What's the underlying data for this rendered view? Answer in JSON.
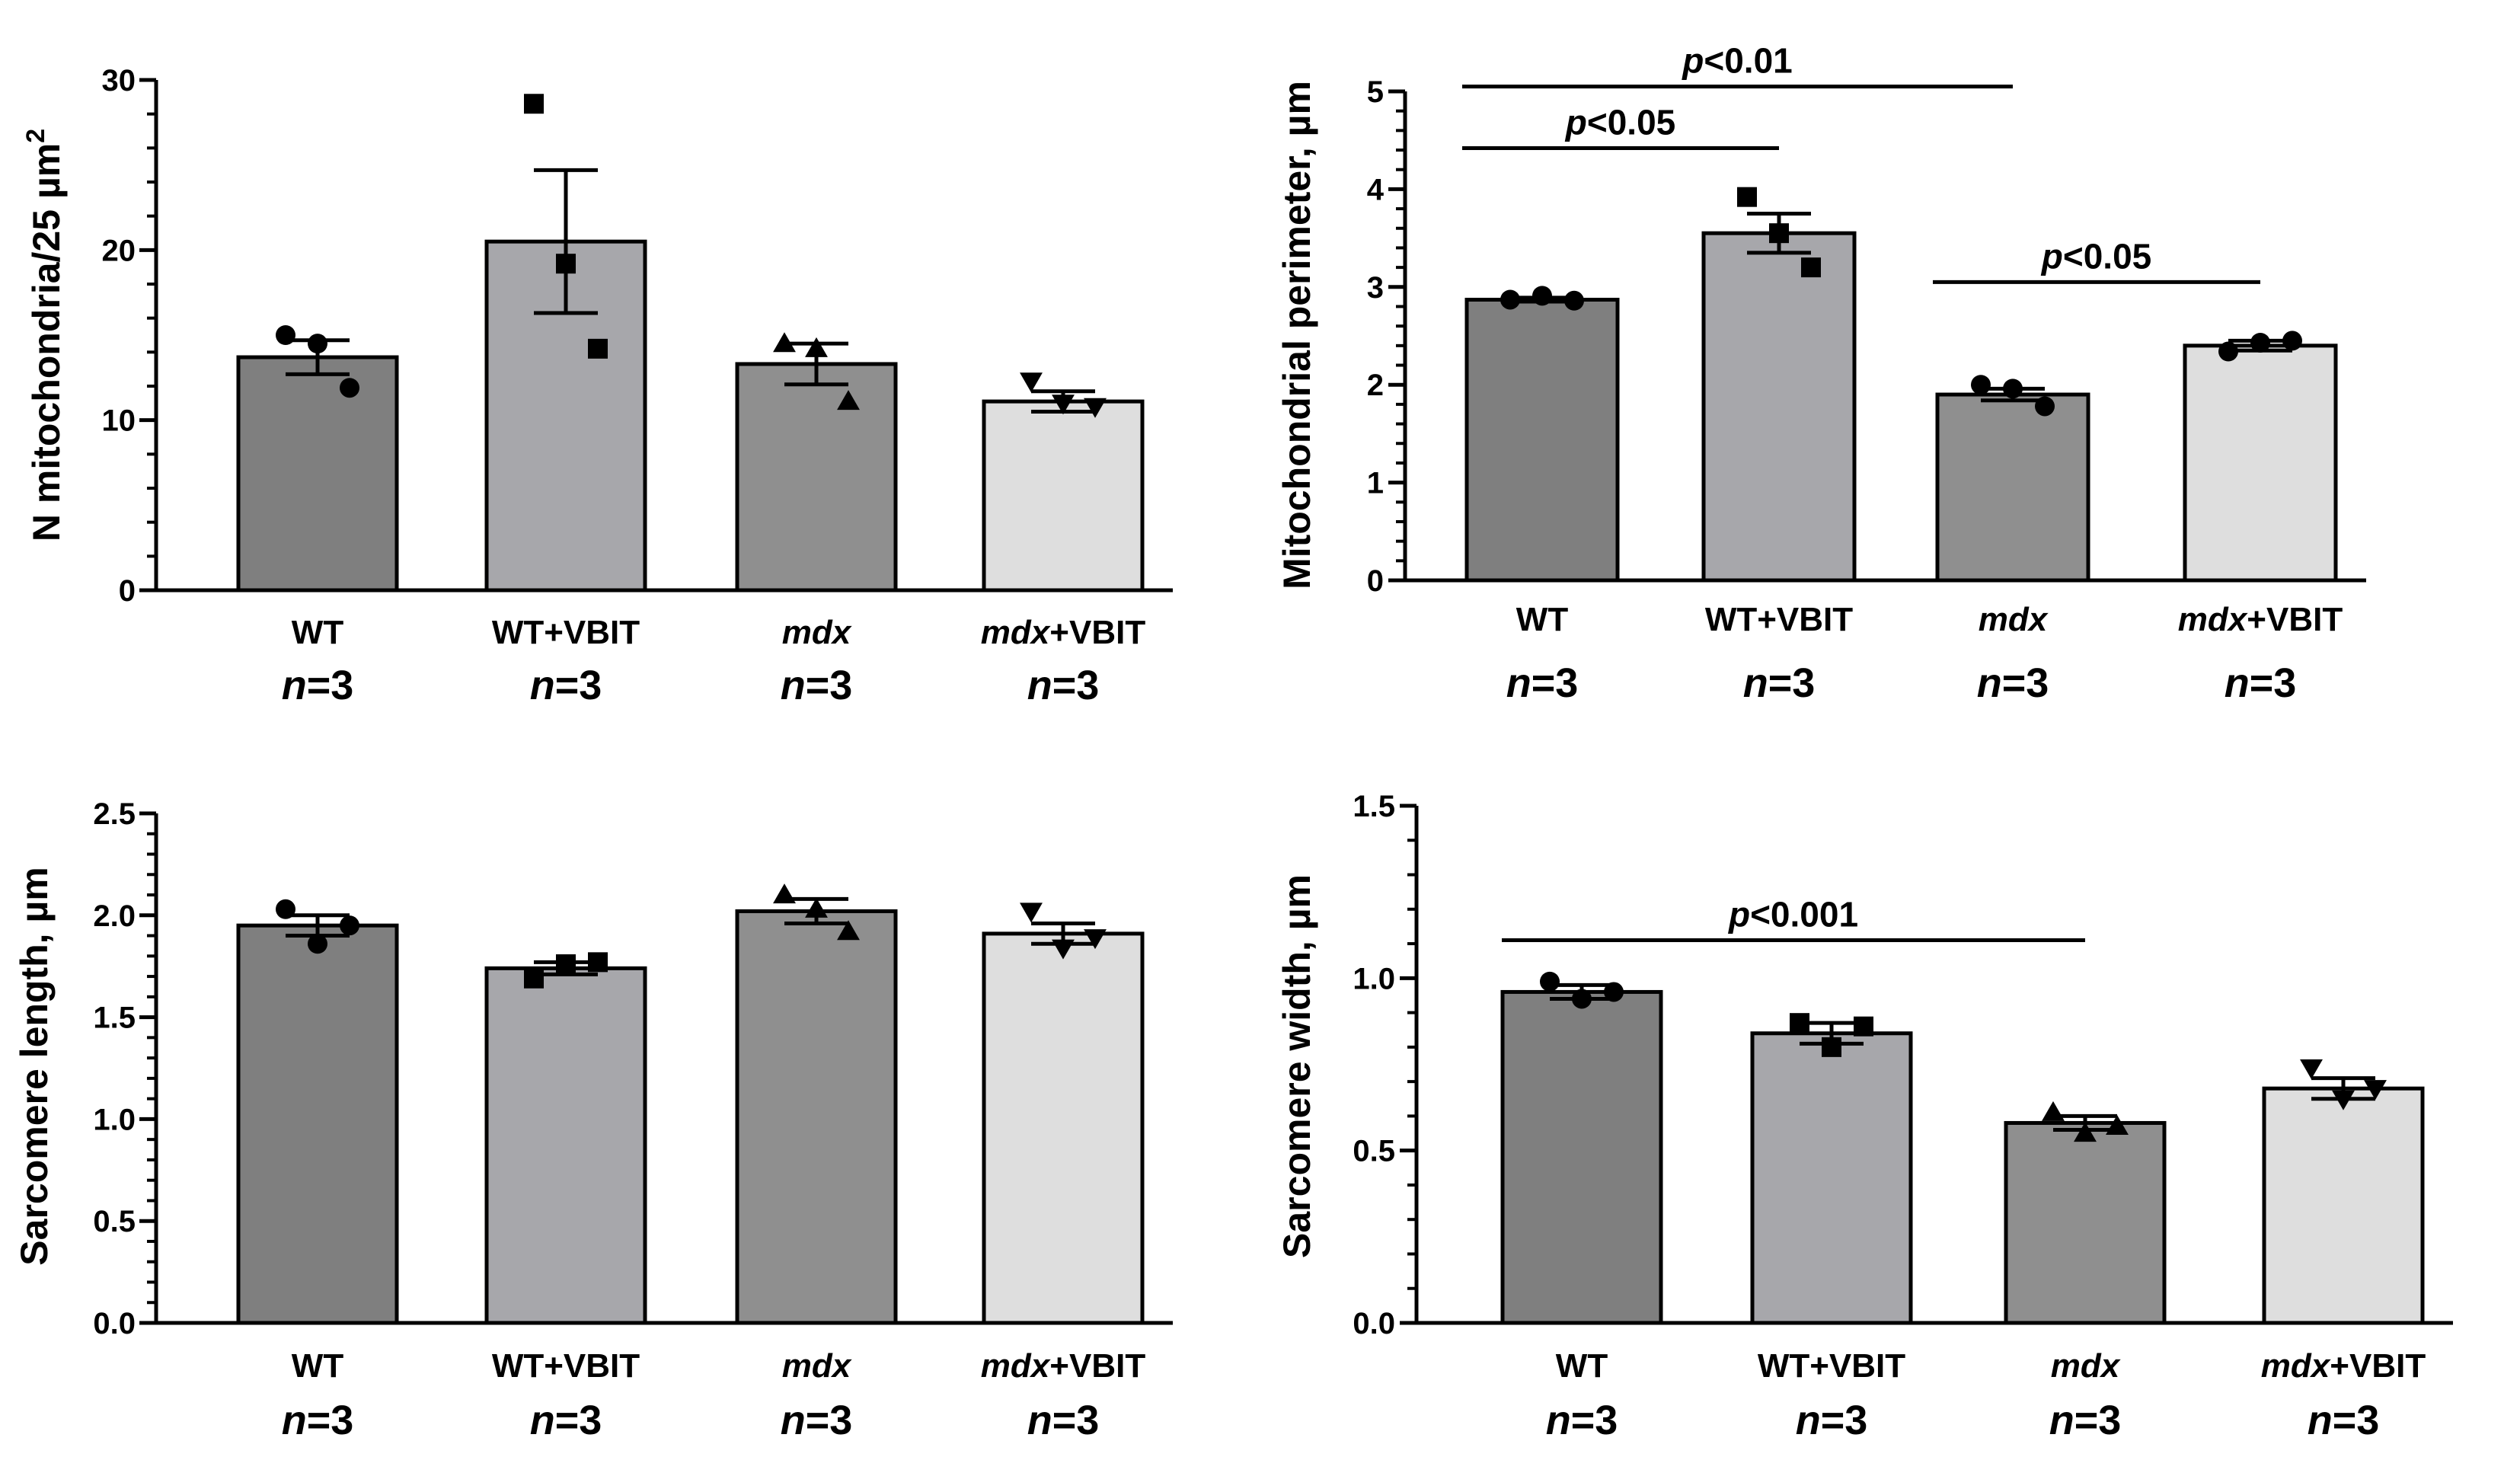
{
  "chart_data": [
    {
      "type": "bar",
      "panel": "top-left",
      "ylabel": "N mitochondria/25 µm",
      "ylabel_superscript": "2",
      "ylim": [
        0,
        30
      ],
      "yticks": [
        "0",
        "10",
        "20",
        "30"
      ],
      "ytick_values": [
        0,
        10,
        20,
        30
      ],
      "categories": [
        {
          "label": "WT",
          "italic": "",
          "suffix": "WT",
          "n_prefix": "n",
          "n_rest": "=3"
        },
        {
          "label": "WT+VBIT",
          "italic": "",
          "suffix": "WT+VBIT",
          "n_prefix": "n",
          "n_rest": "=3"
        },
        {
          "label": "mdx",
          "italic": "mdx",
          "suffix": "",
          "n_prefix": "n",
          "n_rest": "=3"
        },
        {
          "label": "mdx+VBIT",
          "italic": "mdx",
          "suffix": "+VBIT",
          "n_prefix": "n",
          "n_rest": "=3"
        }
      ],
      "values": [
        13.7,
        20.5,
        13.3,
        11.1
      ],
      "sem": [
        1.0,
        4.2,
        1.2,
        0.6
      ],
      "points": [
        [
          15.0,
          14.5,
          11.9
        ],
        [
          28.6,
          19.2,
          14.2
        ],
        [
          14.5,
          14.2,
          11.1
        ],
        [
          12.3,
          11.0,
          10.8
        ]
      ],
      "markers": [
        "circle",
        "square",
        "triangle-up",
        "triangle-down"
      ],
      "colors": [
        "#7f7f7f",
        "#a7a7ab",
        "#8f8f8f",
        "#dedede"
      ],
      "significance": []
    },
    {
      "type": "bar",
      "panel": "top-right",
      "ylabel": "Mitochondrial perimeter, µm",
      "ylabel_superscript": "",
      "ylim": [
        0,
        5
      ],
      "yticks": [
        "0",
        "1",
        "2",
        "3",
        "4",
        "5"
      ],
      "ytick_values": [
        0,
        1,
        2,
        3,
        4,
        5
      ],
      "categories": [
        {
          "label": "WT",
          "italic": "",
          "suffix": "WT",
          "n_prefix": "n",
          "n_rest": "=3"
        },
        {
          "label": "WT+VBIT",
          "italic": "",
          "suffix": "WT+VBIT",
          "n_prefix": "n",
          "n_rest": "=3"
        },
        {
          "label": "mdx",
          "italic": "mdx",
          "suffix": "",
          "n_prefix": "n",
          "n_rest": "=3"
        },
        {
          "label": "mdx+VBIT",
          "italic": "mdx",
          "suffix": "+VBIT",
          "n_prefix": "n",
          "n_rest": "=3"
        }
      ],
      "values": [
        2.87,
        3.55,
        1.9,
        2.4
      ],
      "sem": [
        0.02,
        0.2,
        0.06,
        0.05
      ],
      "points": [
        [
          2.87,
          2.91,
          2.86
        ],
        [
          3.92,
          3.55,
          3.2
        ],
        [
          2.0,
          1.96,
          1.78
        ],
        [
          2.34,
          2.43,
          2.45
        ]
      ],
      "markers": [
        "circle",
        "square",
        "circle",
        "circle"
      ],
      "colors": [
        "#7f7f7f",
        "#a7a7ab",
        "#8f8f8f",
        "#dedede"
      ],
      "significance": [
        {
          "from": 0,
          "to": 2,
          "y": 5.05,
          "p": "p",
          "rest": "<0.01"
        },
        {
          "from": 0,
          "to": 1,
          "y": 4.42,
          "p": "p",
          "rest": "<0.05"
        },
        {
          "from": 2,
          "to": 3,
          "y": 3.05,
          "p": "p",
          "rest": "<0.05"
        }
      ]
    },
    {
      "type": "bar",
      "panel": "bottom-left",
      "ylabel": "Sarcomere length, µm",
      "ylabel_superscript": "",
      "ylim": [
        0,
        2.5
      ],
      "yticks": [
        "0.0",
        "0.5",
        "1.0",
        "1.5",
        "2.0",
        "2.5"
      ],
      "ytick_values": [
        0,
        0.5,
        1.0,
        1.5,
        2.0,
        2.5
      ],
      "categories": [
        {
          "label": "WT",
          "italic": "",
          "suffix": "WT",
          "n_prefix": "n",
          "n_rest": "=3"
        },
        {
          "label": "WT+VBIT",
          "italic": "",
          "suffix": "WT+VBIT",
          "n_prefix": "n",
          "n_rest": "=3"
        },
        {
          "label": "mdx",
          "italic": "mdx",
          "suffix": "",
          "n_prefix": "n",
          "n_rest": "=3"
        },
        {
          "label": "mdx+VBIT",
          "italic": "mdx",
          "suffix": "+VBIT",
          "n_prefix": "n",
          "n_rest": "=3"
        }
      ],
      "values": [
        1.95,
        1.74,
        2.02,
        1.91
      ],
      "sem": [
        0.05,
        0.03,
        0.06,
        0.05
      ],
      "points": [
        [
          2.03,
          1.86,
          1.95
        ],
        [
          1.69,
          1.76,
          1.77
        ],
        [
          2.1,
          2.03,
          1.92
        ],
        [
          2.02,
          1.84,
          1.89
        ]
      ],
      "markers": [
        "circle",
        "square",
        "triangle-up",
        "triangle-down"
      ],
      "colors": [
        "#7f7f7f",
        "#a7a7ab",
        "#8f8f8f",
        "#dedede"
      ],
      "significance": []
    },
    {
      "type": "bar",
      "panel": "bottom-right",
      "ylabel": "Sarcomere width, µm",
      "ylabel_superscript": "",
      "ylim": [
        0,
        1.5
      ],
      "yticks": [
        "0.0",
        "0.5",
        "1.0",
        "1.5"
      ],
      "ytick_values": [
        0,
        0.5,
        1.0,
        1.5
      ],
      "categories": [
        {
          "label": "WT",
          "italic": "",
          "suffix": "WT",
          "n_prefix": "n",
          "n_rest": "=3"
        },
        {
          "label": "WT+VBIT",
          "italic": "",
          "suffix": "WT+VBIT",
          "n_prefix": "n",
          "n_rest": "=3"
        },
        {
          "label": "mdx",
          "italic": "mdx",
          "suffix": "",
          "n_prefix": "n",
          "n_rest": "=3"
        },
        {
          "label": "mdx+VBIT",
          "italic": "mdx",
          "suffix": "+VBIT",
          "n_prefix": "n",
          "n_rest": "=3"
        }
      ],
      "values": [
        0.96,
        0.84,
        0.58,
        0.68
      ],
      "sem": [
        0.02,
        0.03,
        0.02,
        0.03
      ],
      "points": [
        [
          0.99,
          0.94,
          0.96
        ],
        [
          0.87,
          0.8,
          0.86
        ],
        [
          0.61,
          0.55,
          0.57
        ],
        [
          0.74,
          0.65,
          0.68
        ]
      ],
      "markers": [
        "circle",
        "square",
        "triangle-up",
        "triangle-down"
      ],
      "colors": [
        "#7f7f7f",
        "#a7a7ab",
        "#8f8f8f",
        "#dedede"
      ],
      "significance": [
        {
          "from": 0,
          "to": 2,
          "y": 1.11,
          "p": "p",
          "rest": "<0.001"
        }
      ]
    }
  ]
}
